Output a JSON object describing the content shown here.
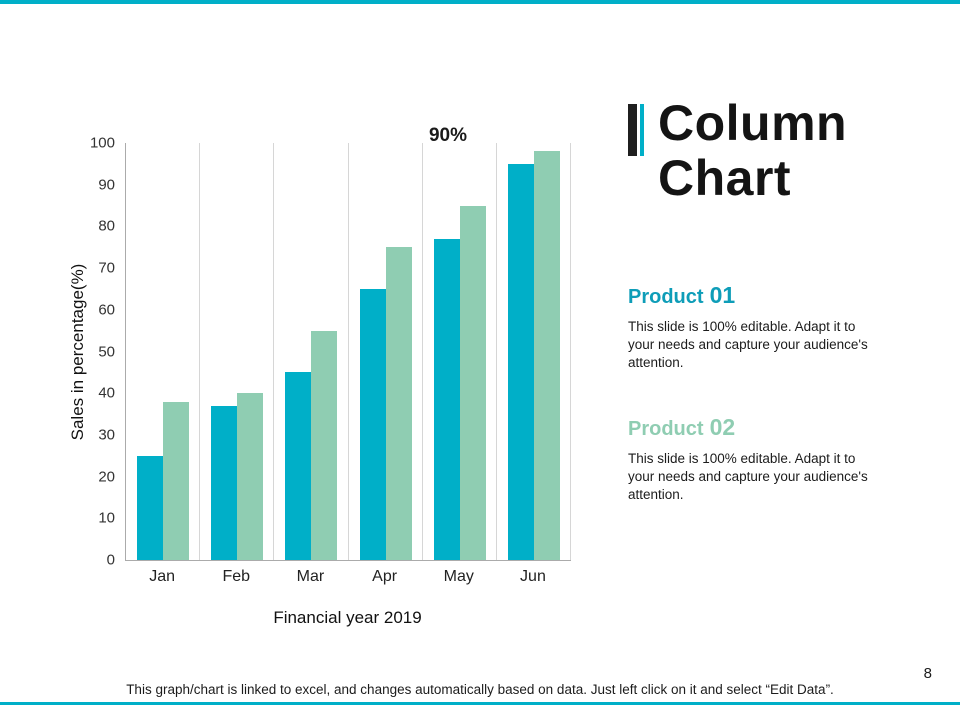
{
  "colors": {
    "accent_teal": "#00AFC8",
    "accent_dark": "#1f1f1f",
    "product1_heading": "#0E9DB8",
    "product2_heading": "#8FCDB2"
  },
  "title": {
    "line1": "Column",
    "line2": "Chart"
  },
  "products": [
    {
      "label": "Product",
      "number": "01",
      "color": "#0E9DB8",
      "description": "This slide is 100% editable. Adapt it to your needs and capture your audience's attention."
    },
    {
      "label": "Product",
      "number": "02",
      "color": "#8FCDB2",
      "description": "This slide is 100% editable. Adapt it to your needs and capture your audience's attention."
    }
  ],
  "chart_data": {
    "type": "bar",
    "categories": [
      "Jan",
      "Feb",
      "Mar",
      "Apr",
      "May",
      "Jun"
    ],
    "series": [
      {
        "name": "Product 01",
        "color": "#00AFC8",
        "values": [
          25,
          37,
          45,
          65,
          77,
          95
        ]
      },
      {
        "name": "Product 02",
        "color": "#8FCDB2",
        "values": [
          38,
          40,
          55,
          75,
          85,
          98
        ]
      }
    ],
    "annotation": "90%",
    "xlabel": "Financial year 2019",
    "ylabel": "Sales in percentage(%)",
    "ylim": [
      0,
      100
    ],
    "yticks": [
      0,
      10,
      20,
      30,
      40,
      50,
      60,
      70,
      80,
      90,
      100
    ],
    "grid": "vertical",
    "legend": "none"
  },
  "footer": {
    "note": "This graph/chart is linked to excel, and changes automatically based on data. Just left click on it and select “Edit Data”.",
    "page_number": "8"
  }
}
